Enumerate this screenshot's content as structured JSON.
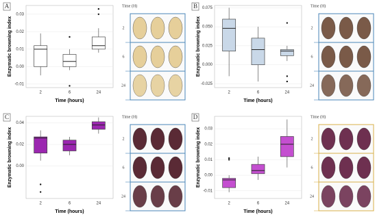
{
  "chart_data": [
    {
      "type": "box",
      "panel_label": "A",
      "ylabel": "Enzymatic browning index",
      "xlabel": "Time (hours)",
      "categories": [
        "2",
        "6",
        "24"
      ],
      "color": "#ffffff",
      "photo_color": "#e6cf9a",
      "photo_border": "#4a86b8",
      "photo_title": "Time (H)",
      "photo_rows": [
        "2",
        "6",
        "24"
      ],
      "ylim": [
        -0.012,
        0.035
      ],
      "yticks": [
        -0.01,
        {
          "value": 0,
          "label": "0.00"
        },
        0.01,
        0.02,
        0.03
      ],
      "grid": true,
      "boxes": [
        {
          "min": -0.005,
          "q1": 0.0,
          "median": 0.01,
          "q3": 0.012,
          "max": 0.019,
          "outliers": []
        },
        {
          "min": -0.002,
          "q1": 0.0,
          "median": 0.003,
          "q3": 0.007,
          "max": 0.01,
          "outliers": [
            0.017,
            -0.011
          ]
        },
        {
          "min": 0.008,
          "q1": 0.01,
          "median": 0.012,
          "q3": 0.017,
          "max": 0.022,
          "outliers": [
            0.033,
            0.03
          ]
        }
      ]
    },
    {
      "type": "box",
      "panel_label": "B",
      "ylabel": "Enzymatic browning index",
      "xlabel": "Time (hours)",
      "categories": [
        "2",
        "6",
        "24"
      ],
      "color": "#c9d8e8",
      "photo_color": "#7a5a48",
      "photo_border": "#4a86b8",
      "photo_title": "Time (H)",
      "photo_rows": [
        "2",
        "6",
        "24"
      ],
      "ylim": [
        -0.03,
        0.078
      ],
      "yticks": [
        {
          "value": -0.025,
          "label": "-0.025"
        },
        {
          "value": 0,
          "label": "0.000"
        },
        {
          "value": 0.025,
          "label": "0.025"
        },
        {
          "value": 0.05,
          "label": "0.050"
        },
        {
          "value": 0.075,
          "label": "0.075"
        }
      ],
      "grid": true,
      "boxes": [
        {
          "min": -0.015,
          "q1": 0.018,
          "median": 0.048,
          "q3": 0.06,
          "max": 0.075,
          "outliers": []
        },
        {
          "min": -0.022,
          "q1": 0.0,
          "median": 0.02,
          "q3": 0.035,
          "max": 0.05,
          "outliers": []
        },
        {
          "min": 0.005,
          "q1": 0.012,
          "median": 0.018,
          "q3": 0.02,
          "max": 0.025,
          "outliers": [
            0.055,
            -0.015,
            -0.022
          ]
        }
      ]
    },
    {
      "type": "box",
      "panel_label": "C",
      "ylabel": "Enzymatic browning index",
      "xlabel": "Time (hours)",
      "categories": [
        "2",
        "6",
        "24"
      ],
      "color": "#9b27b0",
      "photo_color": "#5a2a35",
      "photo_border": "#4a86b8",
      "photo_title": "Time (H)",
      "photo_rows": [
        "2",
        "6",
        "24"
      ],
      "ylim": [
        -0.03,
        0.046
      ],
      "yticks": [
        {
          "value": 0,
          "label": "0.00"
        },
        0.02,
        0.04
      ],
      "grid": true,
      "boxes": [
        {
          "min": 0.005,
          "q1": 0.012,
          "median": 0.026,
          "q3": 0.027,
          "max": 0.033,
          "outliers": [
            -0.017,
            -0.024
          ]
        },
        {
          "min": 0.01,
          "q1": 0.014,
          "median": 0.02,
          "q3": 0.024,
          "max": 0.027,
          "outliers": []
        },
        {
          "min": 0.03,
          "q1": 0.034,
          "median": 0.038,
          "q3": 0.041,
          "max": 0.045,
          "outliers": []
        }
      ]
    },
    {
      "type": "box",
      "panel_label": "D",
      "ylabel": "Enzymatic browning index",
      "xlabel": "Time (hours)",
      "categories": [
        "2",
        "6",
        "24"
      ],
      "color": "#c44fd0",
      "photo_color": "#6e3050",
      "photo_border": "#d8b04a",
      "photo_title": "Time (H)",
      "photo_rows": [
        "2",
        "6",
        "24"
      ],
      "ylim": [
        -0.015,
        0.038
      ],
      "yticks": [
        -0.01,
        {
          "value": 0,
          "label": "0.00"
        },
        0.01,
        0.02,
        0.03
      ],
      "grid": true,
      "boxes": [
        {
          "min": -0.011,
          "q1": -0.008,
          "median": -0.003,
          "q3": -0.002,
          "max": 0.0,
          "outliers": [
            0.01,
            0.011
          ]
        },
        {
          "min": -0.003,
          "q1": 0.001,
          "median": 0.003,
          "q3": 0.007,
          "max": 0.012,
          "outliers": []
        },
        {
          "min": 0.005,
          "q1": 0.012,
          "median": 0.02,
          "q3": 0.025,
          "max": 0.036,
          "outliers": []
        }
      ]
    }
  ]
}
